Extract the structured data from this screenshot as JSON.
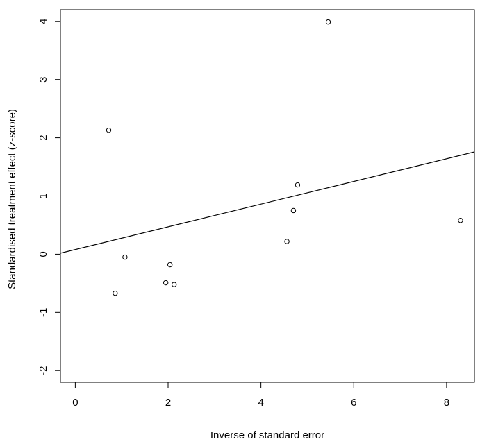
{
  "chart_data": {
    "type": "scatter",
    "title": "",
    "xlabel": "Inverse of standard error",
    "ylabel": "Standardised treatment effect (z-score)",
    "xlim": [
      -0.32,
      8.6
    ],
    "ylim": [
      -2.2,
      4.2
    ],
    "x_ticks": [
      0,
      2,
      4,
      6,
      8
    ],
    "y_ticks": [
      -2,
      -1,
      0,
      1,
      2,
      3,
      4
    ],
    "x_tick_labels": [
      "0",
      "2",
      "4",
      "6",
      "8"
    ],
    "y_tick_labels": [
      "-2",
      "-1",
      "0",
      "1",
      "2",
      "3",
      "4"
    ],
    "grid": false,
    "points": [
      {
        "x": 0.72,
        "y": 2.13
      },
      {
        "x": 0.86,
        "y": -0.67
      },
      {
        "x": 1.07,
        "y": -0.05
      },
      {
        "x": 1.95,
        "y": -0.49
      },
      {
        "x": 2.04,
        "y": -0.18
      },
      {
        "x": 2.13,
        "y": -0.52
      },
      {
        "x": 4.56,
        "y": 0.22
      },
      {
        "x": 4.7,
        "y": 0.75
      },
      {
        "x": 4.79,
        "y": 1.19
      },
      {
        "x": 5.45,
        "y": 3.99
      },
      {
        "x": 8.3,
        "y": 0.58
      }
    ],
    "regression_line": {
      "intercept": 0.08,
      "slope": 0.195
    }
  }
}
